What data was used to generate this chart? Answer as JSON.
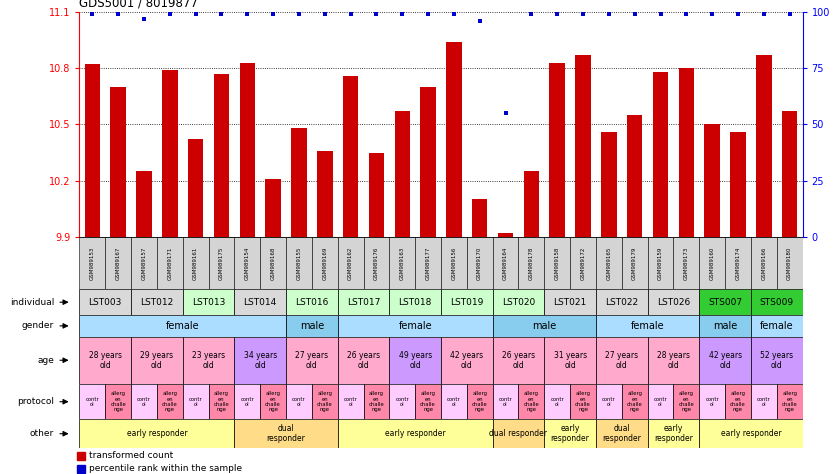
{
  "title": "GDS5001 / 8019877",
  "samples": [
    "GSM989153",
    "GSM989167",
    "GSM989157",
    "GSM989171",
    "GSM989161",
    "GSM989175",
    "GSM989154",
    "GSM989168",
    "GSM989155",
    "GSM989169",
    "GSM989162",
    "GSM989176",
    "GSM989163",
    "GSM989177",
    "GSM989156",
    "GSM989170",
    "GSM989164",
    "GSM989178",
    "GSM989158",
    "GSM989172",
    "GSM989165",
    "GSM989179",
    "GSM989159",
    "GSM989173",
    "GSM989160",
    "GSM989174",
    "GSM989166",
    "GSM989180"
  ],
  "bar_values": [
    10.82,
    10.7,
    10.25,
    10.79,
    10.42,
    10.77,
    10.83,
    10.21,
    10.48,
    10.36,
    10.76,
    10.35,
    10.57,
    10.7,
    10.94,
    10.1,
    9.92,
    10.25,
    10.83,
    10.87,
    10.46,
    10.55,
    10.78,
    10.8,
    10.5,
    10.46,
    10.87,
    10.57
  ],
  "percentile_values": [
    99,
    99,
    97,
    99,
    99,
    99,
    99,
    99,
    99,
    99,
    99,
    99,
    99,
    99,
    99,
    96,
    55,
    99,
    99,
    99,
    99,
    99,
    99,
    99,
    99,
    99,
    99,
    99
  ],
  "ymin": 9.9,
  "ymax": 11.1,
  "yticks_left": [
    9.9,
    10.2,
    10.5,
    10.8,
    11.1
  ],
  "yticks_right": [
    0,
    25,
    50,
    75,
    100
  ],
  "bar_color": "#cc0000",
  "dot_color": "#0000cc",
  "sample_bg": "#d4d4d4",
  "individuals": [
    {
      "label": "LST003",
      "start": 0,
      "end": 2,
      "color": "#d9d9d9"
    },
    {
      "label": "LST012",
      "start": 2,
      "end": 4,
      "color": "#d9d9d9"
    },
    {
      "label": "LST013",
      "start": 4,
      "end": 6,
      "color": "#ccffcc"
    },
    {
      "label": "LST014",
      "start": 6,
      "end": 8,
      "color": "#d9d9d9"
    },
    {
      "label": "LST016",
      "start": 8,
      "end": 10,
      "color": "#ccffcc"
    },
    {
      "label": "LST017",
      "start": 10,
      "end": 12,
      "color": "#ccffcc"
    },
    {
      "label": "LST018",
      "start": 12,
      "end": 14,
      "color": "#ccffcc"
    },
    {
      "label": "LST019",
      "start": 14,
      "end": 16,
      "color": "#ccffcc"
    },
    {
      "label": "LST020",
      "start": 16,
      "end": 18,
      "color": "#ccffcc"
    },
    {
      "label": "LST021",
      "start": 18,
      "end": 20,
      "color": "#d9d9d9"
    },
    {
      "label": "LST022",
      "start": 20,
      "end": 22,
      "color": "#d9d9d9"
    },
    {
      "label": "LST026",
      "start": 22,
      "end": 24,
      "color": "#d9d9d9"
    },
    {
      "label": "STS007",
      "start": 24,
      "end": 26,
      "color": "#33cc33"
    },
    {
      "label": "STS009",
      "start": 26,
      "end": 28,
      "color": "#33cc33"
    }
  ],
  "gender_groups": [
    {
      "label": "female",
      "start": 0,
      "end": 8,
      "color": "#aaddff"
    },
    {
      "label": "male",
      "start": 8,
      "end": 10,
      "color": "#88ccee"
    },
    {
      "label": "female",
      "start": 10,
      "end": 16,
      "color": "#aaddff"
    },
    {
      "label": "male",
      "start": 16,
      "end": 20,
      "color": "#88ccee"
    },
    {
      "label": "female",
      "start": 20,
      "end": 24,
      "color": "#aaddff"
    },
    {
      "label": "male",
      "start": 24,
      "end": 26,
      "color": "#88ccee"
    },
    {
      "label": "female",
      "start": 26,
      "end": 28,
      "color": "#aaddff"
    }
  ],
  "age_groups": [
    {
      "label": "28 years\nold",
      "start": 0,
      "end": 2,
      "color": "#ffaacc"
    },
    {
      "label": "29 years\nold",
      "start": 2,
      "end": 4,
      "color": "#ffaacc"
    },
    {
      "label": "23 years\nold",
      "start": 4,
      "end": 6,
      "color": "#ffaacc"
    },
    {
      "label": "34 years\nold",
      "start": 6,
      "end": 8,
      "color": "#cc99ff"
    },
    {
      "label": "27 years\nold",
      "start": 8,
      "end": 10,
      "color": "#ffaacc"
    },
    {
      "label": "26 years\nold",
      "start": 10,
      "end": 12,
      "color": "#ffaacc"
    },
    {
      "label": "49 years\nold",
      "start": 12,
      "end": 14,
      "color": "#cc99ff"
    },
    {
      "label": "42 years\nold",
      "start": 14,
      "end": 16,
      "color": "#ffaacc"
    },
    {
      "label": "26 years\nold",
      "start": 16,
      "end": 18,
      "color": "#ffaacc"
    },
    {
      "label": "31 years\nold",
      "start": 18,
      "end": 20,
      "color": "#ffaacc"
    },
    {
      "label": "27 years\nold",
      "start": 20,
      "end": 22,
      "color": "#ffaacc"
    },
    {
      "label": "28 years\nold",
      "start": 22,
      "end": 24,
      "color": "#ffaacc"
    },
    {
      "label": "42 years\nold",
      "start": 24,
      "end": 26,
      "color": "#cc99ff"
    },
    {
      "label": "52 years\nold",
      "start": 26,
      "end": 28,
      "color": "#cc99ff"
    }
  ],
  "protocol_color_ctrl": "#ffccff",
  "protocol_color_chall": "#ff88aa",
  "other_groups": [
    {
      "label": "early responder",
      "start": 0,
      "end": 6,
      "color": "#ffff99"
    },
    {
      "label": "dual\nresponder",
      "start": 6,
      "end": 10,
      "color": "#ffdd88"
    },
    {
      "label": "early responder",
      "start": 10,
      "end": 16,
      "color": "#ffff99"
    },
    {
      "label": "dual responder",
      "start": 16,
      "end": 18,
      "color": "#ffdd88"
    },
    {
      "label": "early\nresponder",
      "start": 18,
      "end": 20,
      "color": "#ffff99"
    },
    {
      "label": "dual\nresponder",
      "start": 20,
      "end": 22,
      "color": "#ffdd88"
    },
    {
      "label": "early\nresponder",
      "start": 22,
      "end": 24,
      "color": "#ffff99"
    },
    {
      "label": "early responder",
      "start": 24,
      "end": 28,
      "color": "#ffff99"
    },
    {
      "label": "dual\nresponder",
      "start": 28,
      "end": 28,
      "color": "#ffdd88"
    }
  ],
  "legend_bar_label": "transformed count",
  "legend_dot_label": "percentile rank within the sample"
}
